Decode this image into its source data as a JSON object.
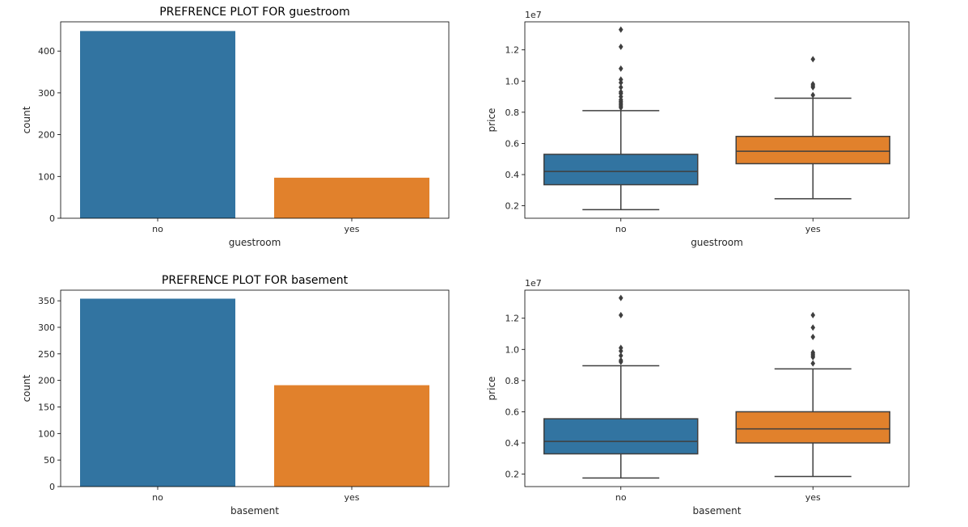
{
  "chart_data": [
    {
      "type": "bar",
      "title": "PREFRENCE PLOT FOR guestroom",
      "xlabel": "guestroom",
      "ylabel": "count",
      "categories": [
        "no",
        "yes"
      ],
      "values": [
        448,
        97
      ],
      "ylim": [
        0,
        470
      ],
      "yticks": [
        0,
        100,
        200,
        300,
        400
      ],
      "colors": [
        "#3274a1",
        "#e1812c"
      ],
      "grid": false
    },
    {
      "type": "box",
      "title": "",
      "xlabel": "guestroom",
      "ylabel": "price",
      "y_offset_label": "1e7",
      "categories": [
        "no",
        "yes"
      ],
      "ylim": [
        0.12,
        1.38
      ],
      "yticks": [
        0.2,
        0.4,
        0.6,
        0.8,
        1.0,
        1.2
      ],
      "ytick_labels": [
        "0.2",
        "0.4",
        "0.6",
        "0.8",
        "1.0",
        "1.2"
      ],
      "boxes": [
        {
          "category": "no",
          "whisker_low": 0.175,
          "q1": 0.335,
          "median": 0.42,
          "q3": 0.53,
          "whisker_high": 0.81,
          "outliers": [
            0.83,
            0.84,
            0.85,
            0.86,
            0.87,
            0.88,
            0.9,
            0.92,
            0.93,
            0.96,
            0.99,
            1.01,
            1.08,
            1.22,
            1.33
          ]
        },
        {
          "category": "yes",
          "whisker_low": 0.245,
          "q1": 0.47,
          "median": 0.55,
          "q3": 0.645,
          "whisker_high": 0.89,
          "outliers": [
            0.91,
            0.96,
            0.97,
            0.98,
            1.14
          ]
        }
      ],
      "colors": [
        "#3274a1",
        "#e1812c"
      ],
      "grid": false
    },
    {
      "type": "bar",
      "title": "PREFRENCE PLOT FOR basement",
      "xlabel": "basement",
      "ylabel": "count",
      "categories": [
        "no",
        "yes"
      ],
      "values": [
        354,
        191
      ],
      "ylim": [
        0,
        370
      ],
      "yticks": [
        0,
        50,
        100,
        150,
        200,
        250,
        300,
        350
      ],
      "colors": [
        "#3274a1",
        "#e1812c"
      ],
      "grid": false
    },
    {
      "type": "box",
      "title": "",
      "xlabel": "basement",
      "ylabel": "price",
      "y_offset_label": "1e7",
      "categories": [
        "no",
        "yes"
      ],
      "ylim": [
        0.12,
        1.38
      ],
      "yticks": [
        0.2,
        0.4,
        0.6,
        0.8,
        1.0,
        1.2
      ],
      "ytick_labels": [
        "0.2",
        "0.4",
        "0.6",
        "0.8",
        "1.0",
        "1.2"
      ],
      "boxes": [
        {
          "category": "no",
          "whisker_low": 0.175,
          "q1": 0.33,
          "median": 0.41,
          "q3": 0.555,
          "whisker_high": 0.895,
          "outliers": [
            0.92,
            0.93,
            0.96,
            0.99,
            1.01,
            1.22,
            1.33
          ]
        },
        {
          "category": "yes",
          "whisker_low": 0.185,
          "q1": 0.4,
          "median": 0.49,
          "q3": 0.6,
          "whisker_high": 0.875,
          "outliers": [
            0.91,
            0.95,
            0.96,
            0.97,
            0.98,
            1.08,
            1.14,
            1.22
          ]
        }
      ],
      "colors": [
        "#3274a1",
        "#e1812c"
      ],
      "grid": false
    }
  ]
}
